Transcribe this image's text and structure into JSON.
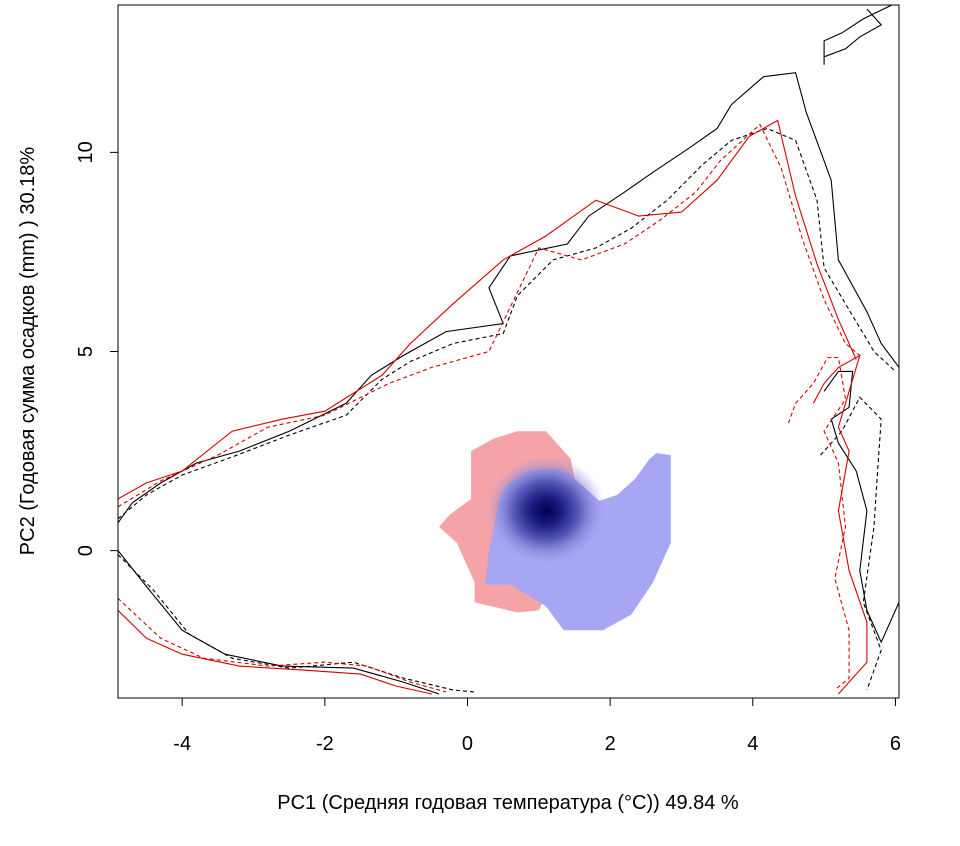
{
  "chart_data": {
    "type": "heatmap",
    "title": "",
    "xlabel": "PC1 (Средняя годовая температура (°C)) 49.84 %",
    "ylabel": "PC2 (Годовая сумма осадков  (mm) ) 30.18%",
    "xlim": [
      -4.9,
      6.05
    ],
    "ylim": [
      -3.7,
      13.7
    ],
    "xticks": [
      -4,
      -2,
      0,
      2,
      4,
      6
    ],
    "xtick_labels": [
      "-4",
      "-2",
      "0",
      "2",
      "4",
      "6"
    ],
    "yticks": [
      0,
      5,
      10
    ],
    "ytick_labels": [
      "0",
      "5",
      "10"
    ],
    "grid": false,
    "legend": "none",
    "colors": {
      "red_region": "#f5a3a6",
      "blue_region": "#a6a6f2",
      "blue_dark": "#000050",
      "contour_black": "#000000",
      "contour_red": "#d40000"
    },
    "regions": [
      {
        "name": "red",
        "fill": "#f5a3a6",
        "polygon": [
          [
            -0.4,
            0.6
          ],
          [
            -0.25,
            0.9
          ],
          [
            0.05,
            1.3
          ],
          [
            0.05,
            2.5
          ],
          [
            0.35,
            2.8
          ],
          [
            0.7,
            3.0
          ],
          [
            1.1,
            3.0
          ],
          [
            1.25,
            2.7
          ],
          [
            1.45,
            2.3
          ],
          [
            1.5,
            1.8
          ],
          [
            1.6,
            0.5
          ],
          [
            1.1,
            -1.1
          ],
          [
            1.0,
            -1.5
          ],
          [
            0.7,
            -1.55
          ],
          [
            0.1,
            -1.3
          ],
          [
            0.1,
            -0.8
          ],
          [
            -0.15,
            0.2
          ],
          [
            -0.4,
            0.6
          ]
        ]
      },
      {
        "name": "blue",
        "fill": "#a6a6f2",
        "polygon": [
          [
            0.25,
            -0.85
          ],
          [
            0.3,
            0.0
          ],
          [
            0.45,
            1.3
          ],
          [
            0.55,
            1.65
          ],
          [
            0.85,
            2.0
          ],
          [
            1.2,
            2.05
          ],
          [
            1.4,
            1.95
          ],
          [
            1.6,
            1.65
          ],
          [
            1.85,
            1.25
          ],
          [
            2.1,
            1.4
          ],
          [
            2.35,
            1.8
          ],
          [
            2.55,
            2.3
          ],
          [
            2.65,
            2.45
          ],
          [
            2.85,
            2.4
          ],
          [
            2.85,
            0.2
          ],
          [
            2.6,
            -0.8
          ],
          [
            2.3,
            -1.6
          ],
          [
            1.9,
            -2.0
          ],
          [
            1.35,
            -2.0
          ],
          [
            1.1,
            -1.4
          ],
          [
            0.6,
            -0.85
          ],
          [
            0.25,
            -0.85
          ]
        ]
      }
    ],
    "density_peak": {
      "x": 1.1,
      "y": 1.0
    },
    "contours": [
      {
        "color": "#000000",
        "dash": "solid",
        "points": [
          [
            -4.9,
            0.7
          ],
          [
            -4.7,
            1.2
          ],
          [
            -4.3,
            1.7
          ],
          [
            -3.8,
            2.2
          ],
          [
            -3.2,
            2.5
          ],
          [
            -2.5,
            3.0
          ],
          [
            -1.7,
            3.7
          ],
          [
            -1.35,
            4.4
          ],
          [
            -0.9,
            4.9
          ],
          [
            -0.3,
            5.5
          ],
          [
            0.5,
            5.7
          ],
          [
            0.3,
            6.6
          ],
          [
            0.6,
            7.4
          ],
          [
            1.4,
            7.7
          ],
          [
            1.7,
            8.4
          ],
          [
            2.2,
            9.0
          ],
          [
            2.6,
            9.5
          ],
          [
            3.1,
            10.1
          ],
          [
            3.5,
            10.6
          ],
          [
            3.7,
            11.2
          ],
          [
            4.15,
            11.9
          ],
          [
            4.6,
            12.0
          ],
          [
            4.75,
            11.0
          ],
          [
            5.1,
            9.3
          ],
          [
            5.2,
            7.3
          ],
          [
            5.6,
            6.0
          ],
          [
            5.8,
            5.2
          ],
          [
            6.05,
            4.6
          ]
        ]
      },
      {
        "color": "#000000",
        "dash": "dashed",
        "points": [
          [
            -4.9,
            0.8
          ],
          [
            -4.5,
            1.4
          ],
          [
            -4.0,
            1.9
          ],
          [
            -3.3,
            2.35
          ],
          [
            -2.5,
            2.9
          ],
          [
            -1.7,
            3.4
          ],
          [
            -1.2,
            4.3
          ],
          [
            -0.8,
            4.75
          ],
          [
            -0.2,
            5.2
          ],
          [
            0.5,
            5.45
          ],
          [
            0.7,
            6.4
          ],
          [
            1.2,
            7.3
          ],
          [
            1.8,
            7.6
          ],
          [
            2.3,
            8.1
          ],
          [
            2.8,
            8.8
          ],
          [
            3.3,
            9.7
          ],
          [
            3.7,
            10.3
          ],
          [
            4.2,
            10.6
          ],
          [
            4.6,
            10.3
          ],
          [
            4.9,
            8.8
          ],
          [
            5.0,
            7.1
          ],
          [
            5.4,
            5.9
          ],
          [
            5.7,
            5.0
          ],
          [
            6.0,
            4.5
          ]
        ]
      },
      {
        "color": "#d40000",
        "dash": "solid",
        "points": [
          [
            -4.9,
            1.3
          ],
          [
            -4.5,
            1.7
          ],
          [
            -4.0,
            2.0
          ],
          [
            -3.3,
            3.0
          ],
          [
            -2.6,
            3.3
          ],
          [
            -2.0,
            3.5
          ],
          [
            -1.2,
            4.4
          ],
          [
            -0.8,
            5.2
          ],
          [
            -0.2,
            6.2
          ],
          [
            0.5,
            7.3
          ],
          [
            1.1,
            7.9
          ],
          [
            1.8,
            8.8
          ],
          [
            2.4,
            8.4
          ],
          [
            3.0,
            8.5
          ],
          [
            3.5,
            9.3
          ],
          [
            3.95,
            10.4
          ],
          [
            4.35,
            10.8
          ],
          [
            4.6,
            8.9
          ],
          [
            4.9,
            7.2
          ],
          [
            5.2,
            5.8
          ],
          [
            5.45,
            4.8
          ]
        ]
      },
      {
        "color": "#d40000",
        "dash": "dashed",
        "points": [
          [
            -4.9,
            1.1
          ],
          [
            -4.3,
            1.75
          ],
          [
            -3.5,
            2.4
          ],
          [
            -2.8,
            3.1
          ],
          [
            -2.0,
            3.4
          ],
          [
            -1.1,
            4.2
          ],
          [
            -0.5,
            4.6
          ],
          [
            0.3,
            5.0
          ],
          [
            1.0,
            7.6
          ],
          [
            1.6,
            7.3
          ],
          [
            2.2,
            7.7
          ],
          [
            2.7,
            8.3
          ],
          [
            3.2,
            9.0
          ],
          [
            3.55,
            9.8
          ],
          [
            4.1,
            10.7
          ],
          [
            4.4,
            9.6
          ],
          [
            4.7,
            7.8
          ],
          [
            5.0,
            6.3
          ],
          [
            5.3,
            5.2
          ],
          [
            5.5,
            4.9
          ]
        ]
      },
      {
        "color": "#000000",
        "dash": "solid",
        "points": [
          [
            -4.9,
            0.0
          ],
          [
            -4.5,
            -0.9
          ],
          [
            -4.0,
            -2.0
          ],
          [
            -3.4,
            -2.6
          ],
          [
            -2.6,
            -2.9
          ],
          [
            -1.6,
            -2.95
          ],
          [
            -0.9,
            -3.3
          ],
          [
            -0.4,
            -3.6
          ]
        ]
      },
      {
        "color": "#000000",
        "dash": "dashed",
        "points": [
          [
            -4.9,
            -0.1
          ],
          [
            -4.4,
            -1.0
          ],
          [
            -3.9,
            -2.1
          ],
          [
            -3.3,
            -2.7
          ],
          [
            -2.5,
            -2.95
          ],
          [
            -1.6,
            -2.8
          ],
          [
            -0.9,
            -3.2
          ],
          [
            -0.2,
            -3.5
          ],
          [
            0.1,
            -3.55
          ]
        ]
      },
      {
        "color": "#d40000",
        "dash": "solid",
        "points": [
          [
            -4.9,
            -1.5
          ],
          [
            -4.5,
            -2.2
          ],
          [
            -4.0,
            -2.6
          ],
          [
            -3.2,
            -2.9
          ],
          [
            -2.3,
            -3.0
          ],
          [
            -1.5,
            -3.1
          ],
          [
            -1.0,
            -3.4
          ],
          [
            -0.5,
            -3.6
          ]
        ]
      },
      {
        "color": "#d40000",
        "dash": "dashed",
        "points": [
          [
            -4.9,
            -1.2
          ],
          [
            -4.3,
            -2.2
          ],
          [
            -3.7,
            -2.7
          ],
          [
            -2.8,
            -2.9
          ],
          [
            -2.0,
            -2.8
          ],
          [
            -1.4,
            -2.9
          ],
          [
            -0.8,
            -3.3
          ],
          [
            -0.3,
            -3.55
          ]
        ]
      },
      {
        "color": "#000000",
        "dash": "solid",
        "points": [
          [
            5.0,
            4.0
          ],
          [
            5.2,
            4.5
          ],
          [
            5.4,
            4.5
          ],
          [
            5.35,
            3.6
          ],
          [
            5.1,
            3.3
          ],
          [
            5.2,
            2.7
          ],
          [
            5.45,
            2.0
          ],
          [
            5.6,
            1.0
          ],
          [
            5.5,
            -0.5
          ],
          [
            5.6,
            -1.5
          ],
          [
            5.8,
            -2.3
          ],
          [
            6.05,
            -1.3
          ]
        ]
      },
      {
        "color": "#000000",
        "dash": "dashed",
        "points": [
          [
            4.95,
            2.4
          ],
          [
            5.05,
            2.6
          ],
          [
            5.25,
            3.0
          ],
          [
            5.5,
            3.85
          ],
          [
            5.8,
            3.3
          ],
          [
            5.75,
            2.0
          ],
          [
            5.7,
            0.6
          ],
          [
            5.55,
            -1.3
          ],
          [
            5.8,
            -2.5
          ],
          [
            5.6,
            -3.5
          ]
        ]
      },
      {
        "color": "#d40000",
        "dash": "solid",
        "points": [
          [
            4.85,
            3.7
          ],
          [
            5.0,
            4.2
          ],
          [
            5.2,
            4.6
          ],
          [
            5.5,
            4.9
          ],
          [
            5.2,
            3.1
          ],
          [
            5.35,
            2.5
          ],
          [
            5.2,
            1.0
          ],
          [
            5.35,
            -0.5
          ],
          [
            5.6,
            -1.8
          ],
          [
            5.6,
            -2.8
          ],
          [
            5.2,
            -3.6
          ]
        ]
      },
      {
        "color": "#d40000",
        "dash": "dashed",
        "points": [
          [
            4.5,
            3.2
          ],
          [
            4.6,
            3.7
          ],
          [
            4.85,
            4.2
          ],
          [
            5.05,
            4.85
          ],
          [
            5.2,
            4.85
          ],
          [
            5.3,
            3.8
          ],
          [
            5.0,
            3.0
          ],
          [
            5.2,
            2.2
          ],
          [
            5.3,
            0.6
          ],
          [
            5.15,
            -0.7
          ],
          [
            5.35,
            -2.0
          ],
          [
            5.35,
            -3.2
          ],
          [
            5.15,
            -3.5
          ]
        ]
      },
      {
        "color": "#000000",
        "dash": "solid",
        "points": [
          [
            5.0,
            12.4
          ],
          [
            5.3,
            12.6
          ],
          [
            5.5,
            12.9
          ],
          [
            5.8,
            13.2
          ],
          [
            5.6,
            13.6
          ]
        ]
      },
      {
        "color": "#000000",
        "dash": "solid",
        "points": [
          [
            5.0,
            12.2
          ],
          [
            5.0,
            12.8
          ],
          [
            5.25,
            13.0
          ],
          [
            5.55,
            13.35
          ],
          [
            5.95,
            13.7
          ]
        ]
      }
    ]
  }
}
